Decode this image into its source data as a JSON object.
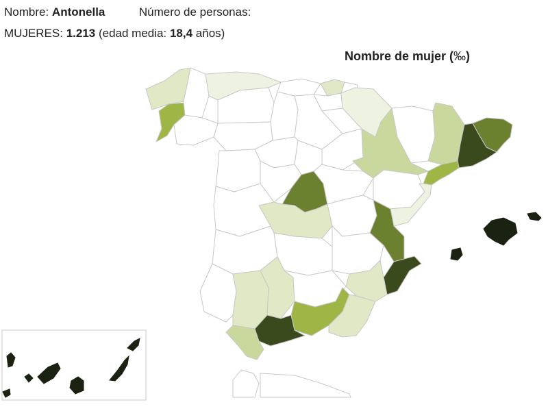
{
  "header": {
    "name_label": "Nombre:",
    "name_value": "Antonella",
    "count_label": "Número de personas:",
    "women_label": "MUJERES:",
    "women_count": "1.213",
    "age_open": "(edad media:",
    "age_value": "18,4",
    "age_close": "años)"
  },
  "legend": {
    "title_bold": "Nombre de mujer (",
    "title_unit": "‰",
    "title_close": ")"
  },
  "colors": {
    "none": "#ffffff",
    "very_low": "#eef2e0",
    "low": "#e0e8c6",
    "mid_low": "#c9d89c",
    "mid": "#9db646",
    "high": "#6b8130",
    "very_high": "#3a4a1c",
    "islands": "#1a2212",
    "border": "#c8c8c8"
  },
  "map": {
    "region": "España",
    "shaded_levels": [
      "none",
      "very_low",
      "low",
      "mid_low",
      "mid",
      "high",
      "very_high"
    ]
  }
}
